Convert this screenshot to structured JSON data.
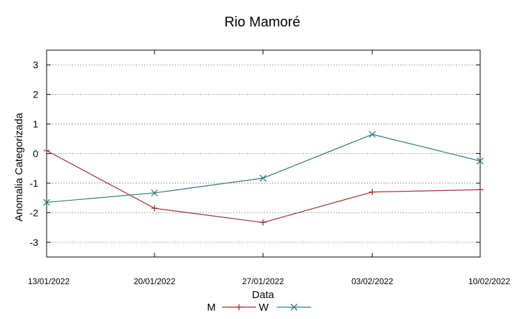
{
  "chart_data": {
    "type": "line",
    "title": "Rio Mamoré",
    "xlabel": "Data",
    "ylabel": "Anomalia Categorizada",
    "categories": [
      "13/01/2022",
      "20/01/2022",
      "27/01/2022",
      "03/02/2022",
      "10/02/2022"
    ],
    "ylim": [
      -3.5,
      3.5
    ],
    "yticks": [
      -3,
      -2,
      -1,
      0,
      1,
      2,
      3
    ],
    "grid": true,
    "legend_placement": "bottom-center",
    "series": [
      {
        "name": "M",
        "marker": "plus",
        "color": "#a0282a",
        "values": [
          0.1,
          -1.85,
          -2.33,
          -1.3,
          -1.22
        ]
      },
      {
        "name": "W",
        "marker": "x",
        "color": "#2a7a7a",
        "values": [
          -1.65,
          -1.33,
          -0.83,
          0.65,
          -0.25
        ]
      }
    ]
  }
}
